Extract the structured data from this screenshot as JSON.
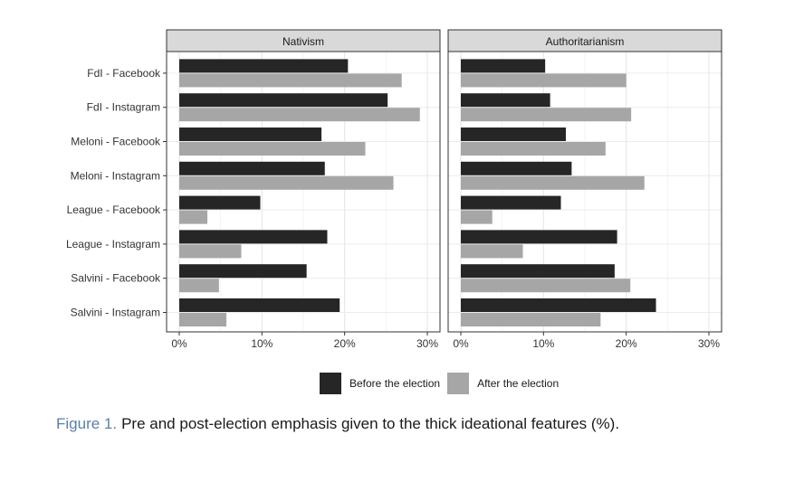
{
  "chart_data": {
    "type": "bar",
    "orientation": "horizontal",
    "facets": [
      "Nativism",
      "Authoritarianism"
    ],
    "categories": [
      "FdI - Facebook",
      "FdI - Instagram",
      "Meloni - Facebook",
      "Meloni - Instagram",
      "League - Facebook",
      "League - Instagram",
      "Salvini - Facebook",
      "Salvini - Instagram"
    ],
    "series": [
      {
        "name": "Before the election",
        "color": "#262626",
        "values": {
          "Nativism": [
            20.4,
            25.2,
            17.2,
            17.6,
            9.8,
            17.9,
            15.4,
            19.4
          ],
          "Authoritarianism": [
            10.2,
            10.8,
            12.7,
            13.4,
            12.1,
            18.9,
            18.6,
            23.6
          ]
        }
      },
      {
        "name": "After the election",
        "color": "#a6a6a6",
        "values": {
          "Nativism": [
            26.9,
            29.1,
            22.5,
            25.9,
            3.4,
            7.5,
            4.8,
            5.7
          ],
          "Authoritarianism": [
            20.0,
            20.6,
            17.5,
            22.2,
            3.8,
            7.5,
            20.5,
            16.9
          ]
        }
      }
    ],
    "xlim": [
      0,
      30
    ],
    "xticks": [
      "0%",
      "10%",
      "20%",
      "30%"
    ],
    "xtick_values": [
      0,
      10,
      20,
      30
    ],
    "grid": true,
    "legend_position": "bottom"
  },
  "caption": {
    "label": "Figure 1.",
    "text": "Pre and post-election emphasis given to the thick ideational features (%)."
  }
}
